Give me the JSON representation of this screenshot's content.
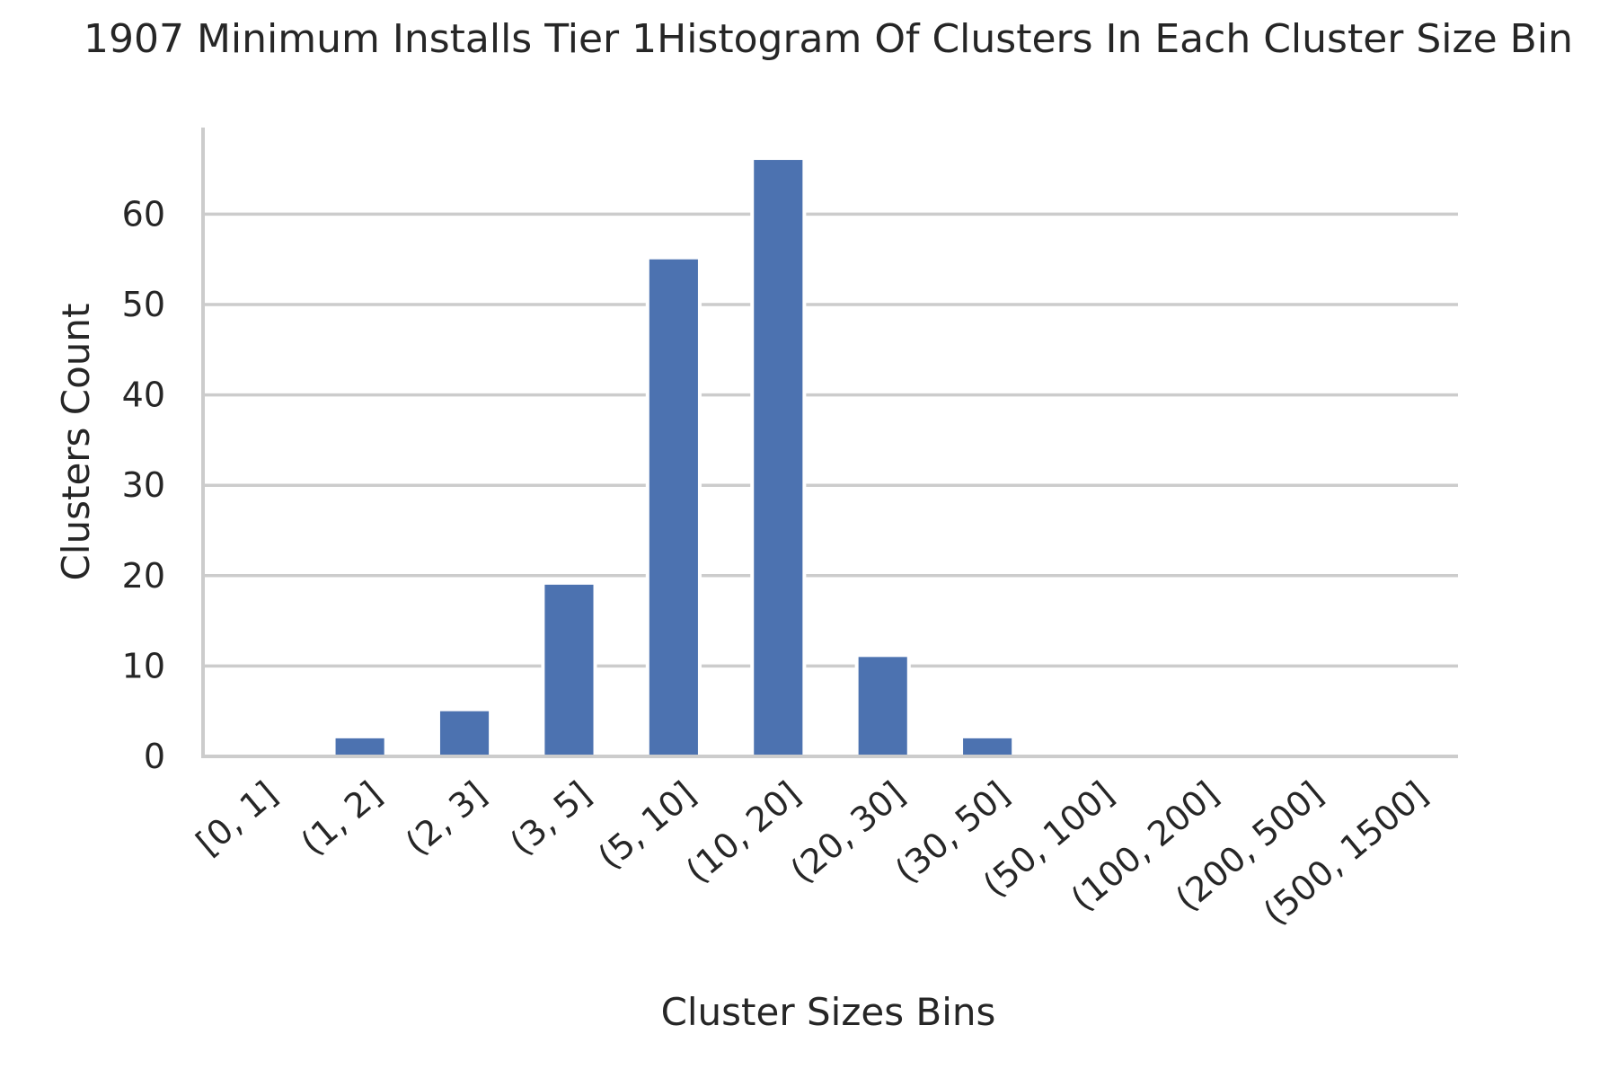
{
  "chart_data": {
    "type": "bar",
    "title": "1907 Minimum Installs Tier 1Histogram Of Clusters In Each Cluster Size Bin",
    "xlabel": "Cluster Sizes Bins",
    "ylabel": "Clusters Count",
    "categories": [
      "[0, 1]",
      "(1, 2]",
      "(2, 3]",
      "(3, 5]",
      "(5, 10]",
      "(10, 20]",
      "(20, 30]",
      "(30, 50]",
      "(50, 100]",
      "(100, 200]",
      "(200, 500]",
      "(500, 1500]"
    ],
    "values": [
      0,
      2,
      5,
      19,
      55,
      66,
      11,
      2,
      0,
      0,
      0,
      0
    ],
    "ylim": [
      0,
      69.3
    ],
    "yticks": [
      0,
      10,
      20,
      30,
      40,
      50,
      60
    ],
    "grid": "horizontal",
    "bar_color": "#4c72b0",
    "legend": "none"
  }
}
